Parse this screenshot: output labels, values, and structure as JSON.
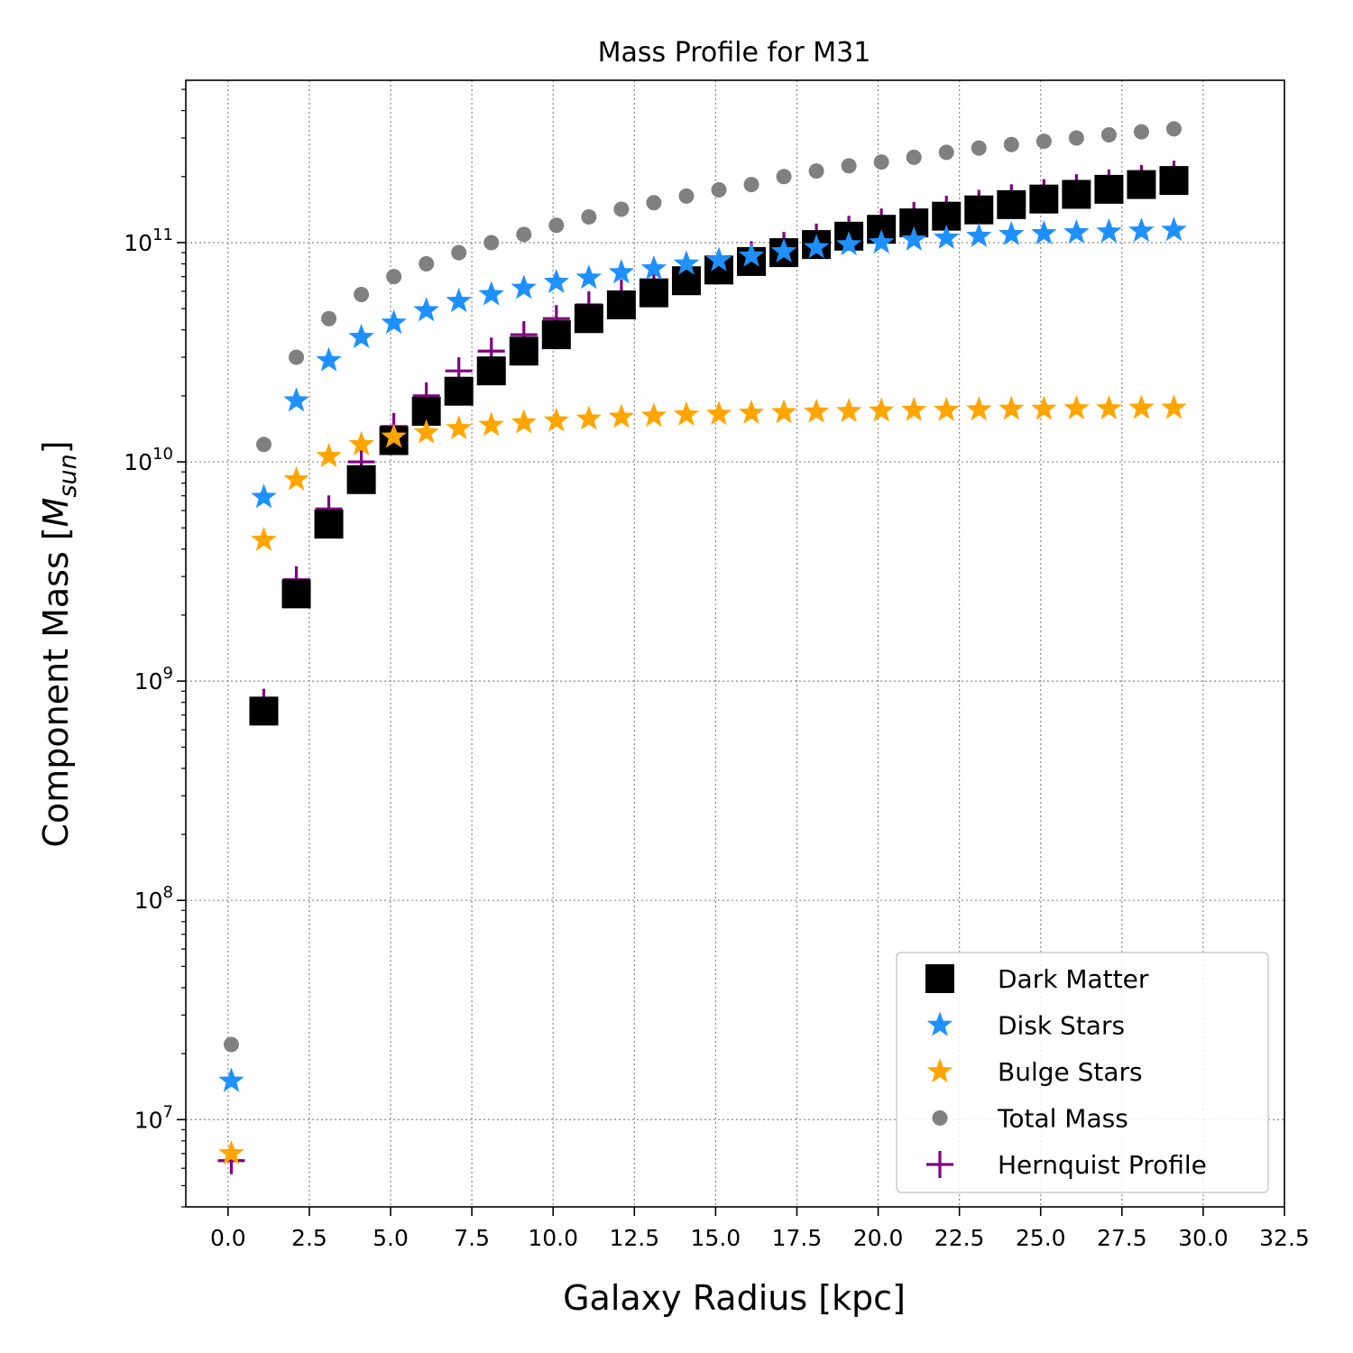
{
  "chart_data": {
    "type": "scatter",
    "title": "Mass Profile for M31",
    "xlabel": "Galaxy Radius [kpc]",
    "ylabel_main": "Component Mass [",
    "ylabel_sym": "M",
    "ylabel_sub": "sun",
    "ylabel_end": "]",
    "y_scale": "log",
    "xlim": [
      -1.3,
      32.5
    ],
    "ylim": [
      4000000.0,
      550000000000.0
    ],
    "grid": true,
    "legend_position": "lower-right",
    "x_ticks": [
      0.0,
      2.5,
      5.0,
      7.5,
      10.0,
      12.5,
      15.0,
      17.5,
      20.0,
      22.5,
      25.0,
      27.5,
      30.0,
      32.5
    ],
    "x_tick_labels": [
      "0.0",
      "2.5",
      "5.0",
      "7.5",
      "10.0",
      "12.5",
      "15.0",
      "17.5",
      "20.0",
      "22.5",
      "25.0",
      "27.5",
      "30.0",
      "32.5"
    ],
    "y_ticks": [
      10000000.0,
      100000000.0,
      1000000000.0,
      10000000000.0,
      100000000000.0
    ],
    "y_tick_base": "10",
    "y_tick_exponents": [
      "7",
      "8",
      "9",
      "10",
      "11"
    ],
    "x": [
      0.1,
      1.1,
      2.1,
      3.1,
      4.1,
      5.1,
      6.1,
      7.1,
      8.1,
      9.1,
      10.1,
      11.1,
      12.1,
      13.1,
      14.1,
      15.1,
      16.1,
      17.1,
      18.1,
      19.1,
      20.1,
      21.1,
      22.1,
      23.1,
      24.1,
      25.1,
      26.1,
      27.1,
      28.1,
      29.1
    ],
    "series": [
      {
        "name": "Dark Matter",
        "marker": "square",
        "color": "#000000",
        "values": [
          null,
          730000000.0,
          2500000000.0,
          5200000000.0,
          8300000000.0,
          12500000000.0,
          17000000000.0,
          21000000000.0,
          26000000000.0,
          32000000000.0,
          38000000000.0,
          45000000000.0,
          52000000000.0,
          59000000000.0,
          67000000000.0,
          75000000000.0,
          82000000000.0,
          90000000000.0,
          98000000000.0,
          107000000000.0,
          115000000000.0,
          123000000000.0,
          132000000000.0,
          141000000000.0,
          149000000000.0,
          158000000000.0,
          166000000000.0,
          175000000000.0,
          184000000000.0,
          192000000000.0
        ]
      },
      {
        "name": "Disk Stars",
        "marker": "star",
        "color": "#1e90ff",
        "values": [
          15000000.0,
          6900000000.0,
          19000000000.0,
          29000000000.0,
          37000000000.0,
          43000000000.0,
          49000000000.0,
          54000000000.0,
          58000000000.0,
          62000000000.0,
          66000000000.0,
          69000000000.0,
          73000000000.0,
          76000000000.0,
          80000000000.0,
          83000000000.0,
          87000000000.0,
          91000000000.0,
          95000000000.0,
          98000000000.0,
          100000000000.0,
          103000000000.0,
          105000000000.0,
          107000000000.0,
          109000000000.0,
          110000000000.0,
          111000000000.0,
          112000000000.0,
          113000000000.0,
          114000000000.0
        ]
      },
      {
        "name": "Bulge Stars",
        "marker": "star",
        "color": "#ffa500",
        "values": [
          7000000.0,
          4400000000.0,
          8300000000.0,
          10600000000.0,
          12000000000.0,
          13000000000.0,
          13600000000.0,
          14200000000.0,
          14700000000.0,
          15100000000.0,
          15400000000.0,
          15700000000.0,
          16000000000.0,
          16200000000.0,
          16400000000.0,
          16500000000.0,
          16700000000.0,
          16800000000.0,
          16900000000.0,
          17000000000.0,
          17100000000.0,
          17200000000.0,
          17200000000.0,
          17300000000.0,
          17400000000.0,
          17400000000.0,
          17500000000.0,
          17500000000.0,
          17600000000.0,
          17600000000.0
        ]
      },
      {
        "name": "Total Mass",
        "marker": "circle",
        "color": "#808080",
        "values": [
          22000000.0,
          12000000000.0,
          30000000000.0,
          45000000000.0,
          58000000000.0,
          70000000000.0,
          80000000000.0,
          90000000000.0,
          100000000000.0,
          109000000000.0,
          120000000000.0,
          131000000000.0,
          142000000000.0,
          152000000000.0,
          163000000000.0,
          174000000000.0,
          184000000000.0,
          200000000000.0,
          212000000000.0,
          224000000000.0,
          233000000000.0,
          245000000000.0,
          258000000000.0,
          270000000000.0,
          280000000000.0,
          290000000000.0,
          300000000000.0,
          310000000000.0,
          320000000000.0,
          330000000000.0
        ]
      },
      {
        "name": "Hernquist Profile",
        "marker": "plus",
        "color": "#800080",
        "values": [
          6500000.0,
          800000000.0,
          2900000000.0,
          6100000000.0,
          10000000000.0,
          14500000000.0,
          20000000000.0,
          26000000000.0,
          32000000000.0,
          38000000000.0,
          45000000000.0,
          52000000000.0,
          59000000000.0,
          66000000000.0,
          73000000000.0,
          80000000000.0,
          88000000000.0,
          97000000000.0,
          106000000000.0,
          115000000000.0,
          124000000000.0,
          133000000000.0,
          142000000000.0,
          151000000000.0,
          160000000000.0,
          169000000000.0,
          178000000000.0,
          187000000000.0,
          196000000000.0,
          205000000000.0
        ]
      }
    ]
  }
}
